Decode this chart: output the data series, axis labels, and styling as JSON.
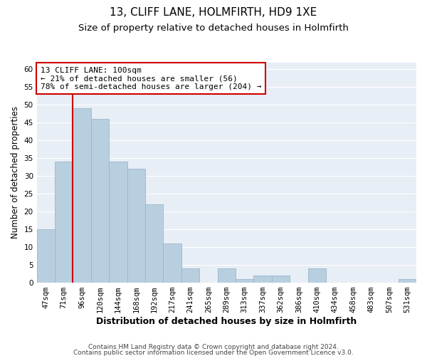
{
  "title": "13, CLIFF LANE, HOLMFIRTH, HD9 1XE",
  "subtitle": "Size of property relative to detached houses in Holmfirth",
  "xlabel": "Distribution of detached houses by size in Holmfirth",
  "ylabel": "Number of detached properties",
  "bar_color": "#b8cfe0",
  "bar_edge_color": "#9ab5cc",
  "bin_labels": [
    "47sqm",
    "71sqm",
    "96sqm",
    "120sqm",
    "144sqm",
    "168sqm",
    "192sqm",
    "217sqm",
    "241sqm",
    "265sqm",
    "289sqm",
    "313sqm",
    "337sqm",
    "362sqm",
    "386sqm",
    "410sqm",
    "434sqm",
    "458sqm",
    "483sqm",
    "507sqm",
    "531sqm"
  ],
  "bar_heights": [
    15,
    34,
    49,
    46,
    34,
    32,
    22,
    11,
    4,
    0,
    4,
    1,
    2,
    2,
    0,
    4,
    0,
    0,
    0,
    0,
    1
  ],
  "ylim": [
    0,
    62
  ],
  "yticks": [
    0,
    5,
    10,
    15,
    20,
    25,
    30,
    35,
    40,
    45,
    50,
    55,
    60
  ],
  "vline_color": "#cc0000",
  "annotation_title": "13 CLIFF LANE: 100sqm",
  "annotation_line1": "← 21% of detached houses are smaller (56)",
  "annotation_line2": "78% of semi-detached houses are larger (204) →",
  "annotation_box_facecolor": "#ffffff",
  "annotation_box_edgecolor": "#cc0000",
  "footer1": "Contains HM Land Registry data © Crown copyright and database right 2024.",
  "footer2": "Contains public sector information licensed under the Open Government Licence v3.0.",
  "background_color": "#ffffff",
  "plot_bg_color": "#e8eef5",
  "grid_color": "#ffffff",
  "title_fontsize": 11,
  "subtitle_fontsize": 9.5,
  "xlabel_fontsize": 9,
  "ylabel_fontsize": 8.5,
  "tick_fontsize": 7.5,
  "annot_fontsize": 8,
  "footer_fontsize": 6.5
}
